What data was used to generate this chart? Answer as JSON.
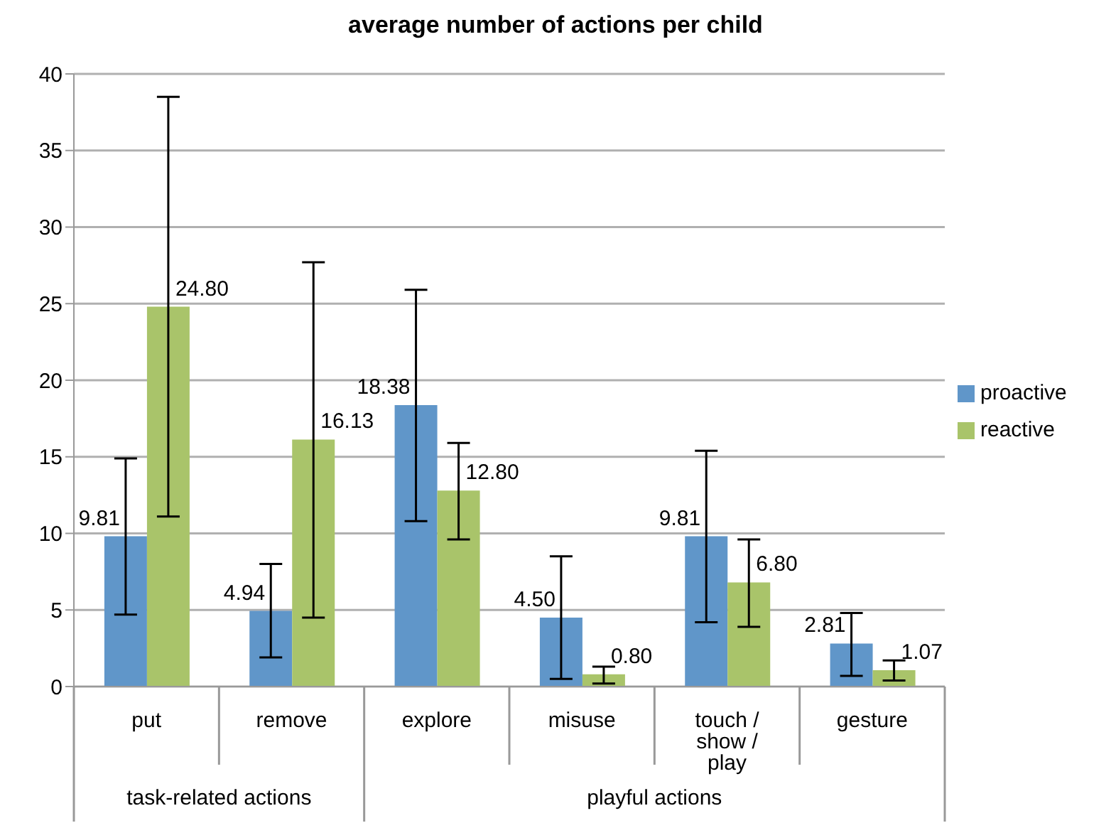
{
  "chart_data": {
    "type": "bar",
    "title": "average number of actions per child",
    "categories": [
      "put",
      "remove",
      "explore",
      "misuse",
      "touch / show / play",
      "gesture"
    ],
    "series": [
      {
        "name": "proactive",
        "color": "#6096c9",
        "values": [
          9.81,
          4.94,
          18.38,
          4.5,
          9.81,
          2.81
        ],
        "value_labels": [
          "9.81",
          "4.94",
          "18.38",
          "4.50",
          "9.81",
          "2.81"
        ],
        "errors": [
          [
            4.7,
            14.9
          ],
          [
            1.9,
            8.0
          ],
          [
            10.8,
            25.9
          ],
          [
            0.5,
            8.5
          ],
          [
            4.2,
            15.4
          ],
          [
            0.7,
            4.8
          ]
        ]
      },
      {
        "name": "reactive",
        "color": "#a9c46a",
        "values": [
          24.8,
          16.13,
          12.8,
          0.8,
          6.8,
          1.07
        ],
        "value_labels": [
          "24.80",
          "16.13",
          "12.80",
          "0.80",
          "6.80",
          "1.07"
        ],
        "errors": [
          [
            11.1,
            38.5
          ],
          [
            4.5,
            27.7
          ],
          [
            9.6,
            15.9
          ],
          [
            0.2,
            1.3
          ],
          [
            3.9,
            9.6
          ],
          [
            0.4,
            1.7
          ]
        ]
      }
    ],
    "annotations": [
      "task-related actions",
      "playful actions"
    ],
    "ylim": [
      0,
      40
    ],
    "yticks": [
      0,
      5,
      10,
      15,
      20,
      25,
      30,
      35,
      40
    ],
    "grid": "y",
    "legend": "right"
  }
}
